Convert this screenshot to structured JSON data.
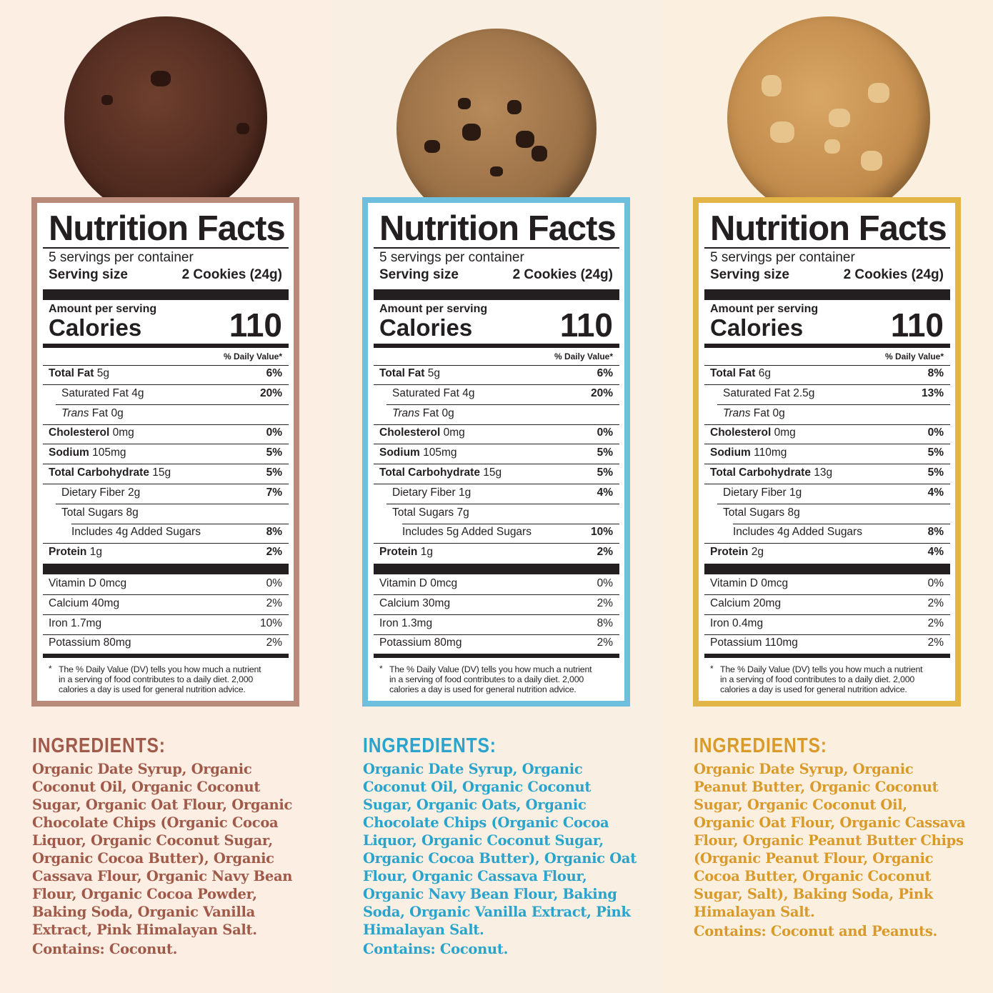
{
  "colors": {
    "bg": [
      "#fdeee3",
      "#f9efe2",
      "#fbf0e0"
    ],
    "accent": [
      "#b98a79",
      "#6dbfdd",
      "#e3b446"
    ],
    "ingredient_text": [
      "#a05a4a",
      "#2aa4cc",
      "#d99a2a"
    ]
  },
  "products": [
    {
      "cookie": "double-chocolate-cookie-image",
      "title": "Nutrition Facts",
      "servings": "5 servings per container",
      "serving_label": "Serving size",
      "serving_value": "2 Cookies (24g)",
      "amount_label": "Amount per serving",
      "calories_label": "Calories",
      "calories": "110",
      "dv_header": "% Daily Value*",
      "nutrients": [
        {
          "name": "Total Fat",
          "amount": "5g",
          "dv": "6%"
        },
        {
          "name": "Saturated Fat",
          "amount": "4g",
          "dv": "20%"
        },
        {
          "name": "Trans",
          "name2": "Fat",
          "amount": "0g",
          "dv": ""
        },
        {
          "name": "Cholesterol",
          "amount": "0mg",
          "dv": "0%"
        },
        {
          "name": "Sodium",
          "amount": "105mg",
          "dv": "5%"
        },
        {
          "name": "Total Carbohydrate",
          "amount": "15g",
          "dv": "5%"
        },
        {
          "name": "Dietary Fiber",
          "amount": "2g",
          "dv": "7%"
        },
        {
          "name": "Total Sugars",
          "amount": "8g",
          "dv": ""
        },
        {
          "name": "Includes 4g Added Sugars",
          "amount": "",
          "dv": "8%"
        },
        {
          "name": "Protein",
          "amount": "1g",
          "dv": "2%"
        }
      ],
      "vitamins": [
        {
          "name": "Vitamin D 0mcg",
          "dv": "0%"
        },
        {
          "name": "Calcium 40mg",
          "dv": "2%"
        },
        {
          "name": "Iron 1.7mg",
          "dv": "10%"
        },
        {
          "name": "Potassium 80mg",
          "dv": "2%"
        }
      ],
      "footnote_star": "*",
      "footnote": [
        "The % Daily Value (DV) tells you how much a nutrient",
        "in a serving of food contributes to a daily diet. 2,000",
        "calories a day is used for general nutrition advice."
      ],
      "ingredients_heading": "INGREDIENTS:",
      "ingredients": [
        "Organic Date Syrup, Organic",
        "Coconut Oil, Organic Coconut",
        "Sugar, Organic Oat Flour, Organic",
        "Chocolate Chips (Organic Cocoa",
        "Liquor, Organic Coconut Sugar,",
        "Organic Cocoa Butter), Organic",
        "Cassava Flour, Organic Navy Bean",
        "Flour, Organic Cocoa Powder,",
        "Baking Soda, Organic Vanilla",
        "Extract, Pink Himalayan Salt."
      ],
      "contains": "Contains: Coconut."
    },
    {
      "cookie": "chocolate-chip-cookie-image",
      "title": "Nutrition Facts",
      "servings": "5 servings per container",
      "serving_label": "Serving size",
      "serving_value": "2 Cookies (24g)",
      "amount_label": "Amount per serving",
      "calories_label": "Calories",
      "calories": "110",
      "dv_header": "% Daily Value*",
      "nutrients": [
        {
          "name": "Total Fat",
          "amount": "5g",
          "dv": "6%"
        },
        {
          "name": "Saturated Fat",
          "amount": "4g",
          "dv": "20%"
        },
        {
          "name": "Trans",
          "name2": "Fat",
          "amount": "0g",
          "dv": ""
        },
        {
          "name": "Cholesterol",
          "amount": "0mg",
          "dv": "0%"
        },
        {
          "name": "Sodium",
          "amount": "105mg",
          "dv": "5%"
        },
        {
          "name": "Total Carbohydrate",
          "amount": "15g",
          "dv": "5%"
        },
        {
          "name": "Dietary Fiber",
          "amount": "1g",
          "dv": "4%"
        },
        {
          "name": "Total Sugars",
          "amount": "7g",
          "dv": ""
        },
        {
          "name": "Includes 5g Added Sugars",
          "amount": "",
          "dv": "10%"
        },
        {
          "name": "Protein",
          "amount": "1g",
          "dv": "2%"
        }
      ],
      "vitamins": [
        {
          "name": "Vitamin D 0mcg",
          "dv": "0%"
        },
        {
          "name": "Calcium 30mg",
          "dv": "2%"
        },
        {
          "name": "Iron 1.3mg",
          "dv": "8%"
        },
        {
          "name": "Potassium 80mg",
          "dv": "2%"
        }
      ],
      "footnote_star": "*",
      "footnote": [
        "The % Daily Value (DV) tells you how much a nutrient",
        "in a serving of food contributes to a daily diet. 2,000",
        "calories a day is used for general nutrition advice."
      ],
      "ingredients_heading": "INGREDIENTS:",
      "ingredients": [
        "Organic Date Syrup, Organic",
        "Coconut Oil, Organic Coconut",
        "Sugar, Organic Oats, Organic",
        "Chocolate Chips (Organic Cocoa",
        "Liquor, Organic Coconut Sugar,",
        "Organic Cocoa Butter), Organic Oat",
        "Flour, Organic Cassava Flour,",
        "Organic Navy Bean Flour, Baking",
        "Soda, Organic Vanilla Extract, Pink",
        "Himalayan Salt."
      ],
      "contains": "Contains: Coconut."
    },
    {
      "cookie": "peanut-butter-chip-cookie-image",
      "title": "Nutrition Facts",
      "servings": "5 servings per container",
      "serving_label": "Serving size",
      "serving_value": "2 Cookies (24g)",
      "amount_label": "Amount per serving",
      "calories_label": "Calories",
      "calories": "110",
      "dv_header": "% Daily Value*",
      "nutrients": [
        {
          "name": "Total Fat",
          "amount": "6g",
          "dv": "8%"
        },
        {
          "name": "Saturated Fat",
          "amount": "2.5g",
          "dv": "13%"
        },
        {
          "name": "Trans",
          "name2": "Fat",
          "amount": "0g",
          "dv": ""
        },
        {
          "name": "Cholesterol",
          "amount": "0mg",
          "dv": "0%"
        },
        {
          "name": "Sodium",
          "amount": "110mg",
          "dv": "5%"
        },
        {
          "name": "Total Carbohydrate",
          "amount": "13g",
          "dv": "5%"
        },
        {
          "name": "Dietary Fiber",
          "amount": "1g",
          "dv": "4%"
        },
        {
          "name": "Total Sugars",
          "amount": "8g",
          "dv": ""
        },
        {
          "name": "Includes 4g Added Sugars",
          "amount": "",
          "dv": "8%"
        },
        {
          "name": "Protein",
          "amount": "2g",
          "dv": "4%"
        }
      ],
      "vitamins": [
        {
          "name": "Vitamin D 0mcg",
          "dv": "0%"
        },
        {
          "name": "Calcium 20mg",
          "dv": "2%"
        },
        {
          "name": "Iron 0.4mg",
          "dv": "2%"
        },
        {
          "name": "Potassium 110mg",
          "dv": "2%"
        }
      ],
      "footnote_star": "*",
      "footnote": [
        "The % Daily Value (DV) tells you how much a nutrient",
        "in a serving of food contributes to a daily diet. 2,000",
        "calories a day is used for general nutrition advice."
      ],
      "ingredients_heading": "INGREDIENTS:",
      "ingredients": [
        "Organic Date Syrup, Organic",
        "Peanut Butter, Organic Coconut",
        "Sugar, Organic Coconut Oil,",
        "Organic Oat Flour, Organic Cassava",
        "Flour, Organic Peanut Butter Chips",
        "(Organic Peanut Flour, Organic",
        "Cocoa Butter, Organic Coconut",
        "Sugar, Salt), Baking Soda, Pink",
        "Himalayan Salt."
      ],
      "contains": "Contains: Coconut and Peanuts."
    }
  ]
}
